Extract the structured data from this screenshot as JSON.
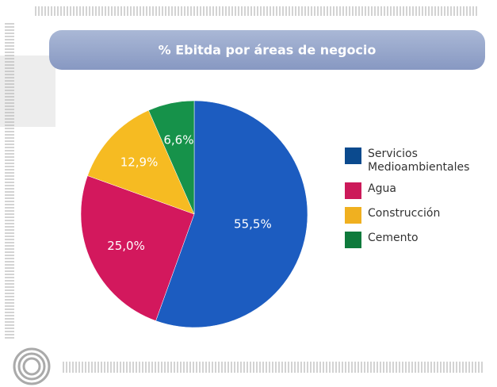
{
  "chart_data": {
    "type": "pie",
    "title": "% Ebitda por áreas de negocio",
    "categories": [
      "Servicios Medioambientales",
      "Agua",
      "Construcción",
      "Cemento"
    ],
    "values": [
      55.5,
      25.0,
      12.9,
      6.6
    ],
    "value_labels": [
      "55,5%",
      "25,0%",
      "12,9%",
      "6,6%"
    ],
    "colors": [
      "#1c5cc0",
      "#d3185d",
      "#f6bb22",
      "#16924a"
    ],
    "legend_colors": [
      "#0b4a8e",
      "#cc1a5a",
      "#f0b020",
      "#0f7a3c"
    ]
  }
}
